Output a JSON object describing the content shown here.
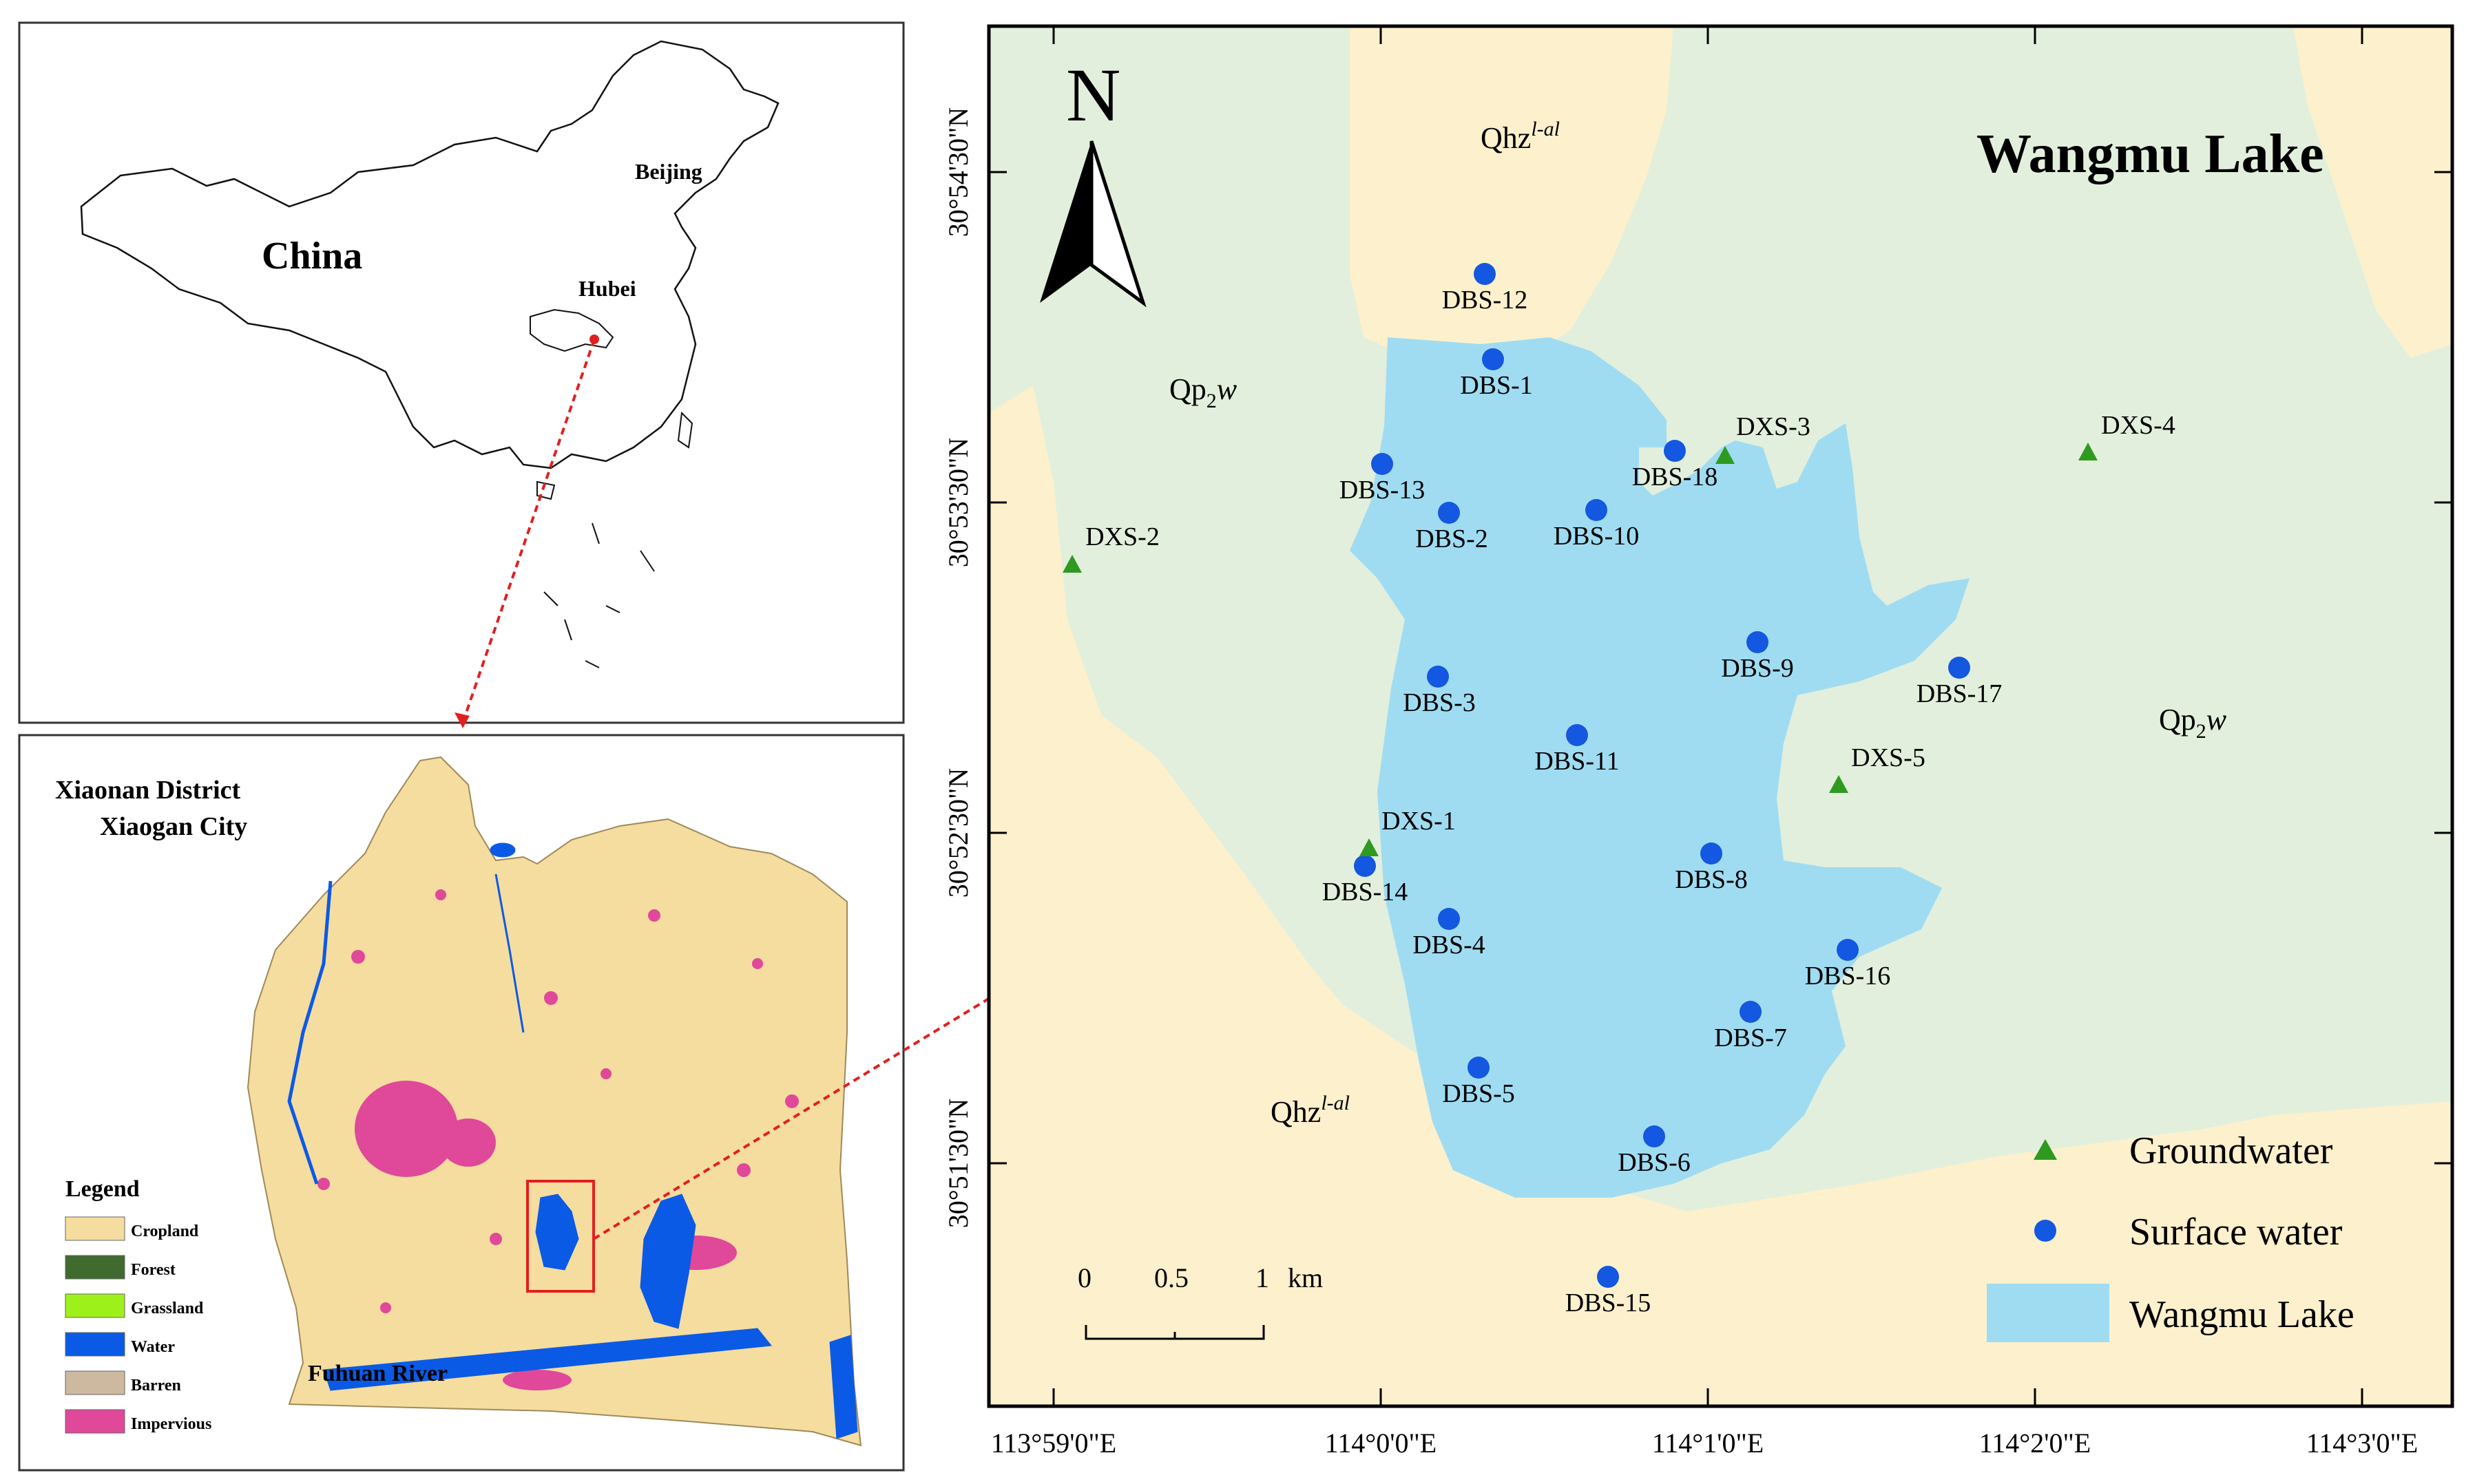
{
  "china_panel": {
    "title": "China",
    "labels": [
      {
        "id": "beijing",
        "text": "Beijing"
      },
      {
        "id": "hubei",
        "text": "Hubei"
      }
    ]
  },
  "district_panel": {
    "title_line1": "Xiaonan District",
    "title_line2": "Xiaogan City",
    "river_label": "Fuhuan River",
    "legend_title": "Legend",
    "legend": [
      {
        "label": "Cropland",
        "color": "#f5dc9f"
      },
      {
        "label": "Forest",
        "color": "#3f6b2e"
      },
      {
        "label": "Grassland",
        "color": "#9ef01a"
      },
      {
        "label": "Water",
        "color": "#0a5ae6"
      },
      {
        "label": "Barren",
        "color": "#cdb9a0"
      },
      {
        "label": "Impervious",
        "color": "#e0489a"
      }
    ]
  },
  "main_map": {
    "title": "Wangmu Lake",
    "north": "N",
    "lat_ticks": [
      "30°54'30\"N",
      "30°53'30\"N",
      "30°52'30\"N",
      "30°51'30\"N"
    ],
    "lon_ticks": [
      "113°59'0\"E",
      "114°0'0\"E",
      "114°1'0\"E",
      "114°2'0\"E",
      "114°3'0\"E"
    ],
    "scale": {
      "labels": [
        "0",
        "0.5",
        "1"
      ],
      "unit": "km"
    },
    "geo_units": [
      {
        "id": "qhz-top",
        "base": "Qhz",
        "sup": "l-al"
      },
      {
        "id": "qhz-bottom",
        "base": "Qhz",
        "sup": "l-al"
      },
      {
        "id": "qp2w-left",
        "base": "Qp",
        "sub": "2",
        "italic": "w"
      },
      {
        "id": "qp2w-right",
        "base": "Qp",
        "sub": "2",
        "italic": "w"
      }
    ],
    "surface_sites": [
      "DBS-1",
      "DBS-2",
      "DBS-3",
      "DBS-4",
      "DBS-5",
      "DBS-6",
      "DBS-7",
      "DBS-8",
      "DBS-9",
      "DBS-10",
      "DBS-11",
      "DBS-12",
      "DBS-13",
      "DBS-14",
      "DBS-15",
      "DBS-16",
      "DBS-17",
      "DBS-18"
    ],
    "ground_sites": [
      "DXS-1",
      "DXS-2",
      "DXS-3",
      "DXS-4",
      "DXS-5"
    ],
    "legend": [
      {
        "label": "Groundwater",
        "color": "#2e9a1f"
      },
      {
        "label": "Surface water",
        "color": "#1457e0"
      },
      {
        "label": "Wangmu Lake",
        "color": "#9fdcf2"
      }
    ],
    "colors": {
      "lake": "#9fdcf2",
      "qhz": "#fdf0cc",
      "qp2w": "#e2efdc"
    }
  }
}
